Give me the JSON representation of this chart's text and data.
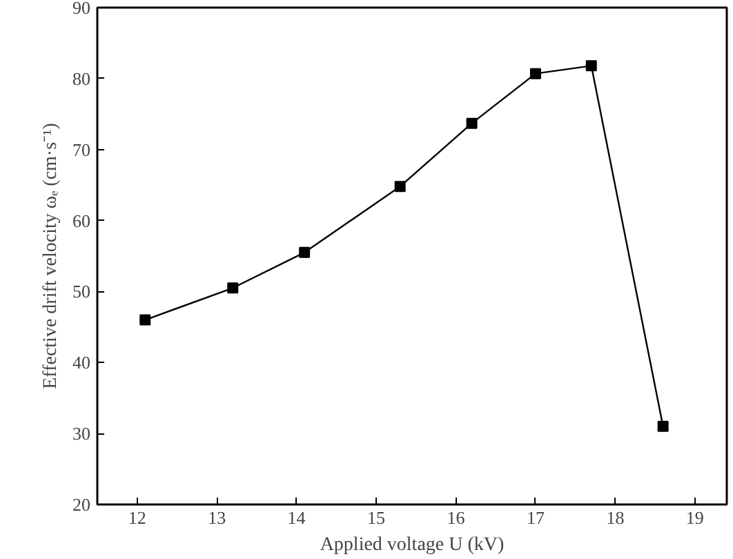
{
  "chart_data": {
    "type": "line",
    "xlabel": "Applied voltage U (kV)",
    "ylabel": "Effective drift velocity ωₑ (cm·s⁻¹)",
    "x": [
      12.1,
      13.2,
      14.1,
      15.3,
      16.2,
      17.0,
      17.7,
      18.6
    ],
    "series": [
      {
        "color": "#000000",
        "values": [
          46,
          50.5,
          55.5,
          64.8,
          73.7,
          80.7,
          81.8,
          31
        ]
      }
    ],
    "xlim": [
      11.5,
      19.4
    ],
    "xticks": [
      12,
      13,
      14,
      15,
      16,
      17,
      18,
      19
    ],
    "ylim": [
      20,
      90
    ],
    "yticks": [
      20,
      30,
      40,
      50,
      60,
      70,
      80,
      90
    ],
    "marker": "square",
    "line_style": "solid"
  }
}
